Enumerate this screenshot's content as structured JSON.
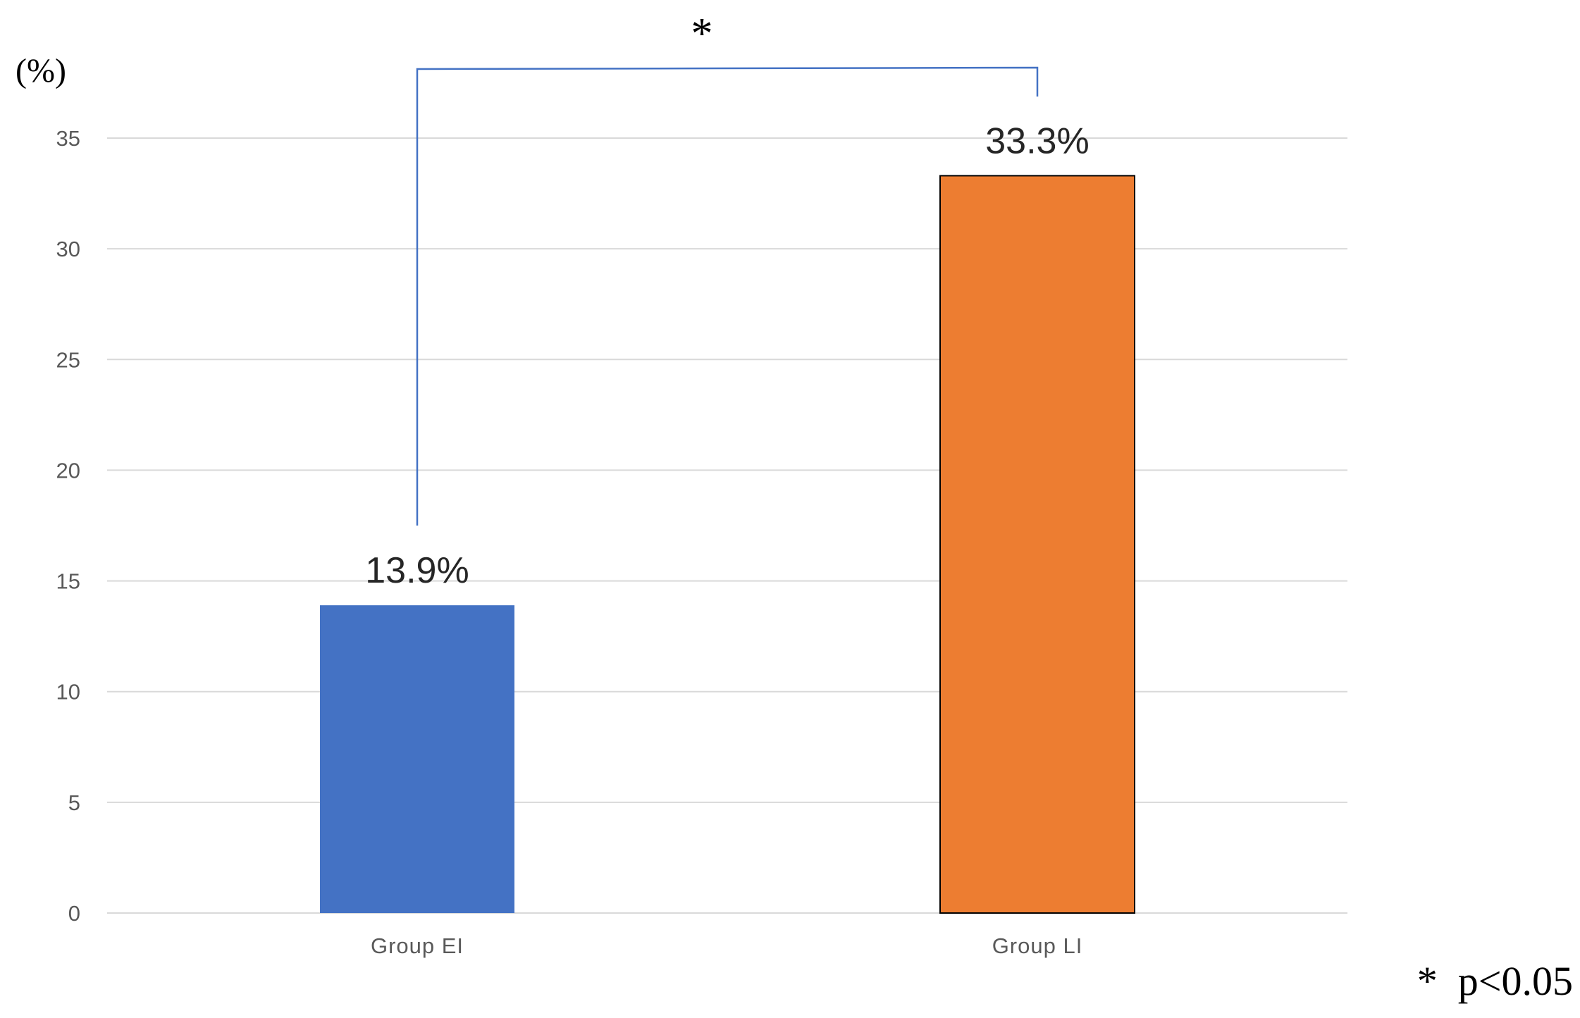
{
  "chart_data": {
    "type": "bar",
    "categories": [
      "Group EI",
      "Group LI"
    ],
    "values": [
      13.9,
      33.3
    ],
    "data_labels": [
      "13.9%",
      "33.3%"
    ],
    "colors": [
      "#4472c4",
      "#ed7d31"
    ],
    "ylabel": "(%)",
    "ylim": [
      0,
      35
    ],
    "yticks": [
      0,
      5,
      10,
      15,
      20,
      25,
      30,
      35
    ],
    "grid": true,
    "significance": {
      "symbol": "*",
      "between": [
        "Group EI",
        "Group LI"
      ]
    },
    "footnote": "*  p<0.05"
  }
}
